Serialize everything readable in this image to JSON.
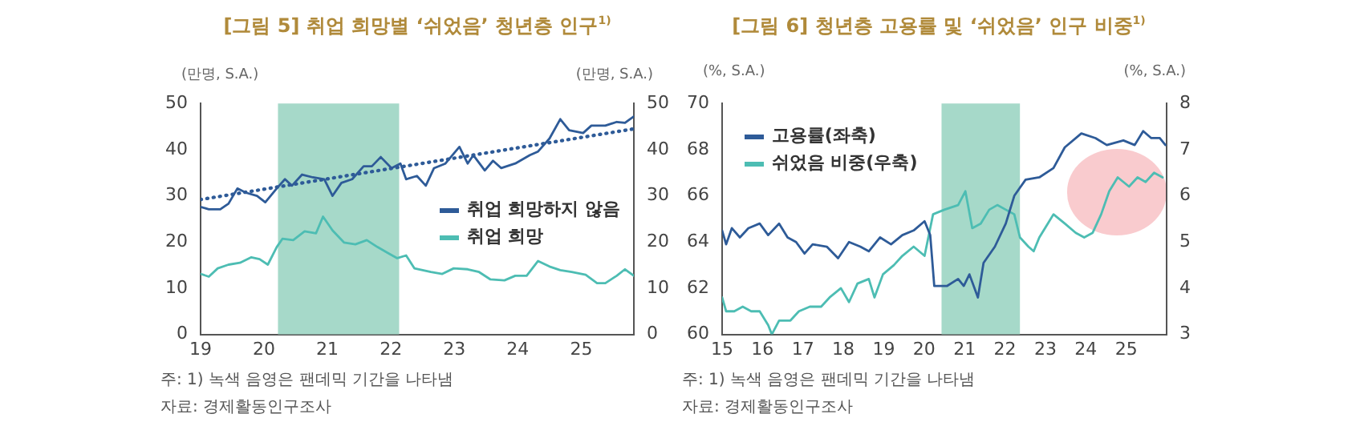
{
  "chart_data": [
    {
      "type": "line",
      "title": "[그림 5] 취업 희망별 ‘쉬었음’ 청년층 인구$^{1)}$",
      "ylabel": "(만명, S.A.)",
      "y2label": "(만명, S.A.)",
      "xlim": [
        19,
        25.83
      ],
      "xticks": [
        19,
        20,
        21,
        22,
        23,
        24,
        25
      ],
      "ylim": [
        0,
        50
      ],
      "yticks": [
        0,
        10,
        20,
        30,
        40,
        50
      ],
      "y2lim": [
        0,
        50
      ],
      "y2ticks": [
        0,
        10,
        20,
        30,
        40,
        50
      ],
      "legend": "right",
      "bands": [
        {
          "axis": "x",
          "from": 20.22,
          "to": 22.13,
          "color": "#a6d9c9"
        }
      ],
      "annotations": [
        "주: 1) 녹색 음영은 팬데믹 기간을 나타냄",
        "자료: 경제활동인구조사"
      ],
      "series": [
        {
          "name": "취업 희망하지 않음",
          "color": "#2e5b98",
          "x": [
            19.0,
            19.13,
            19.31,
            19.44,
            19.58,
            19.71,
            19.89,
            20.02,
            20.2,
            20.33,
            20.44,
            20.6,
            20.77,
            20.95,
            21.08,
            21.22,
            21.39,
            21.57,
            21.7,
            21.84,
            22.01,
            22.15,
            22.24,
            22.41,
            22.55,
            22.68,
            22.86,
            23.08,
            23.21,
            23.3,
            23.48,
            23.61,
            23.74,
            23.96,
            24.19,
            24.32,
            24.5,
            24.67,
            24.81,
            25.03,
            25.16,
            25.38,
            25.56,
            25.69,
            25.83
          ],
          "values": [
            27.6,
            27.1,
            27.1,
            28.3,
            31.6,
            30.7,
            30.0,
            28.6,
            31.6,
            33.6,
            32.2,
            34.6,
            34.0,
            33.6,
            30.0,
            32.8,
            33.6,
            36.4,
            36.4,
            38.4,
            36.0,
            37.0,
            33.6,
            34.3,
            32.2,
            36.0,
            37.0,
            40.6,
            37.0,
            38.8,
            35.5,
            37.6,
            36.0,
            37.0,
            38.8,
            39.6,
            42.4,
            46.6,
            44.2,
            43.6,
            45.2,
            45.2,
            46.0,
            45.8,
            47.2
          ]
        },
        {
          "name": "취업 희망",
          "color": "#4dbdb3",
          "x": [
            19.0,
            19.13,
            19.27,
            19.44,
            19.62,
            19.8,
            19.93,
            20.06,
            20.2,
            20.29,
            20.46,
            20.64,
            20.82,
            20.93,
            21.08,
            21.26,
            21.44,
            21.62,
            21.79,
            21.97,
            22.1,
            22.24,
            22.37,
            22.63,
            22.81,
            22.99,
            23.21,
            23.39,
            23.57,
            23.79,
            23.96,
            24.14,
            24.32,
            24.5,
            24.67,
            24.85,
            25.07,
            25.25,
            25.38,
            25.56,
            25.69,
            25.83
          ],
          "values": [
            13.1,
            12.5,
            14.3,
            15.1,
            15.5,
            16.7,
            16.3,
            15.1,
            18.9,
            20.7,
            20.4,
            22.3,
            21.9,
            25.5,
            22.5,
            19.9,
            19.5,
            20.4,
            18.9,
            17.5,
            16.5,
            17.1,
            14.3,
            13.5,
            13.1,
            14.3,
            14.1,
            13.5,
            11.9,
            11.7,
            12.7,
            12.7,
            15.9,
            14.7,
            13.9,
            13.5,
            12.9,
            11.1,
            11.1,
            12.7,
            14.1,
            12.7
          ]
        },
        {
          "type": "line",
          "line_style": "dotted",
          "color": "#2e5b98",
          "x": [
            19.0,
            25.83
          ],
          "values": [
            29.2,
            44.5
          ]
        }
      ]
    },
    {
      "type": "line",
      "title": "[그림 6] 청년층 고용률 및 ‘쉬었음’ 인구 비중$^{1)}$",
      "ylabel": "(%, S.A.)",
      "y2label": "(%, S.A.)",
      "xlim": [
        15,
        26
      ],
      "xticks": [
        15,
        16,
        17,
        18,
        19,
        20,
        21,
        22,
        23,
        24,
        25
      ],
      "ylim": [
        60,
        70
      ],
      "yticks": [
        60,
        62,
        64,
        66,
        68,
        70
      ],
      "y2lim": [
        3,
        8
      ],
      "y2ticks": [
        3,
        4,
        5,
        6,
        7,
        8
      ],
      "legend": "top left",
      "bands": [
        {
          "axis": "x",
          "from": 20.43,
          "to": 22.37,
          "color": "#a6d9c9"
        }
      ],
      "annotations": [
        "주: 1) 녹색 음영은 팬데믹 기간을 나타냄",
        "자료: 경제활동인구조사"
      ],
      "series": [
        {
          "name": "고용률(좌축)",
          "color": "#2e5b98",
          "x": [
            15.0,
            15.1,
            15.24,
            15.44,
            15.65,
            15.93,
            16.14,
            16.41,
            16.62,
            16.83,
            17.04,
            17.24,
            17.59,
            17.87,
            18.14,
            18.42,
            18.63,
            18.91,
            19.18,
            19.46,
            19.74,
            20.01,
            20.15,
            20.25,
            20.57,
            20.84,
            20.98,
            21.12,
            21.33,
            21.47,
            21.75,
            22.02,
            22.23,
            22.51,
            22.85,
            23.2,
            23.48,
            23.89,
            24.24,
            24.52,
            24.93,
            25.21,
            25.42,
            25.62,
            25.83,
            25.97
          ],
          "values": [
            64.5,
            63.9,
            64.6,
            64.2,
            64.6,
            64.8,
            64.3,
            64.8,
            64.2,
            64.0,
            63.5,
            63.9,
            63.8,
            63.3,
            64.0,
            63.8,
            63.6,
            64.2,
            63.9,
            64.3,
            64.5,
            64.9,
            64.3,
            62.1,
            62.1,
            62.4,
            62.1,
            62.6,
            61.6,
            63.1,
            63.8,
            64.8,
            66.0,
            66.7,
            66.8,
            67.2,
            68.1,
            68.7,
            68.5,
            68.2,
            68.4,
            68.2,
            68.8,
            68.5,
            68.5,
            68.2
          ]
        },
        {
          "name": "쉬었음 비중(우축)",
          "color": "#4dbdb3",
          "axis": "y2",
          "x": [
            15.0,
            15.1,
            15.3,
            15.51,
            15.72,
            15.93,
            16.14,
            16.23,
            16.41,
            16.69,
            16.9,
            17.17,
            17.45,
            17.66,
            17.94,
            18.14,
            18.35,
            18.63,
            18.77,
            18.98,
            19.25,
            19.46,
            19.74,
            20.01,
            20.22,
            20.5,
            20.84,
            21.02,
            21.19,
            21.4,
            21.61,
            21.81,
            22.02,
            22.23,
            22.37,
            22.58,
            22.71,
            22.85,
            23.06,
            23.2,
            23.48,
            23.75,
            23.96,
            24.17,
            24.38,
            24.58,
            24.79,
            25.07,
            25.28,
            25.48,
            25.69,
            25.9
          ],
          "values": [
            3.8,
            3.5,
            3.5,
            3.6,
            3.5,
            3.5,
            3.2,
            3.0,
            3.3,
            3.3,
            3.5,
            3.6,
            3.6,
            3.8,
            4.0,
            3.7,
            4.1,
            4.2,
            3.8,
            4.3,
            4.5,
            4.7,
            4.9,
            4.7,
            5.6,
            5.7,
            5.8,
            6.1,
            5.3,
            5.4,
            5.7,
            5.8,
            5.7,
            5.6,
            5.1,
            4.9,
            4.8,
            5.1,
            5.4,
            5.6,
            5.4,
            5.2,
            5.1,
            5.2,
            5.6,
            6.1,
            6.4,
            6.2,
            6.4,
            6.3,
            6.5,
            6.4
          ]
        }
      ]
    }
  ]
}
